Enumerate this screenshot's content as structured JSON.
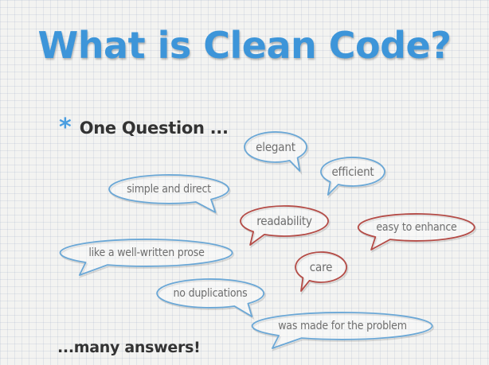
{
  "slide": {
    "title": "What is Clean Code?",
    "bullet_icon": "asterisk-bullet-icon",
    "bullet": "One Question ...",
    "closing": "...many answers!",
    "bubbles": [
      {
        "id": "elegant",
        "text": "elegant",
        "color": "#6aa7d6"
      },
      {
        "id": "efficient",
        "text": "efficient",
        "color": "#6aa7d6"
      },
      {
        "id": "simple",
        "text": "simple and direct",
        "color": "#6aa7d6"
      },
      {
        "id": "readability",
        "text": "readability",
        "color": "#b44b46"
      },
      {
        "id": "enhance",
        "text": "easy to enhance",
        "color": "#b44b46"
      },
      {
        "id": "prose",
        "text": "like a well-written prose",
        "color": "#6aa7d6"
      },
      {
        "id": "care",
        "text": "care",
        "color": "#b44b46"
      },
      {
        "id": "nodup",
        "text": "no duplications",
        "color": "#6aa7d6"
      },
      {
        "id": "problem",
        "text": "was made for the problem",
        "color": "#6aa7d6"
      }
    ]
  }
}
